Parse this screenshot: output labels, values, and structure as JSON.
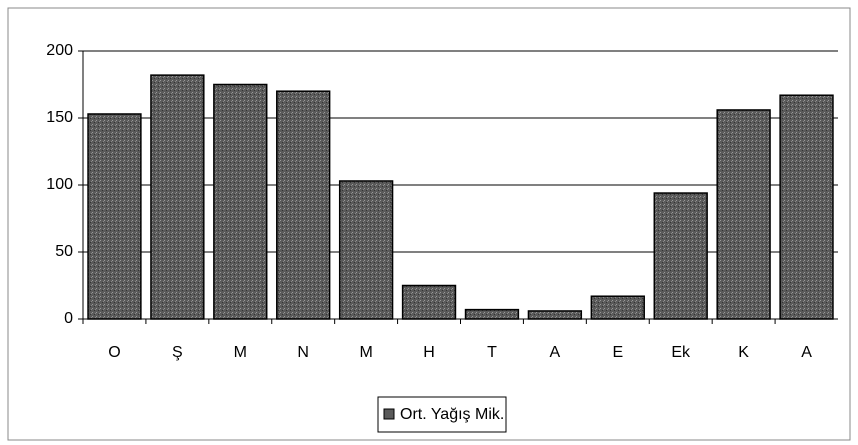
{
  "chart_data": {
    "type": "bar",
    "categories": [
      "O",
      "Ş",
      "M",
      "N",
      "M",
      "H",
      "T",
      "A",
      "E",
      "Ek",
      "K",
      "A"
    ],
    "series": [
      {
        "name": "Ort. Yağış Mik.",
        "color": "#5a5a5a",
        "values": [
          153,
          182,
          175,
          170,
          103,
          25,
          7,
          6,
          17,
          94,
          156,
          167
        ]
      }
    ],
    "ylim": [
      0,
      200
    ],
    "yticks": [
      0,
      50,
      100,
      150,
      200
    ],
    "grid": true,
    "legend": "bottom"
  }
}
